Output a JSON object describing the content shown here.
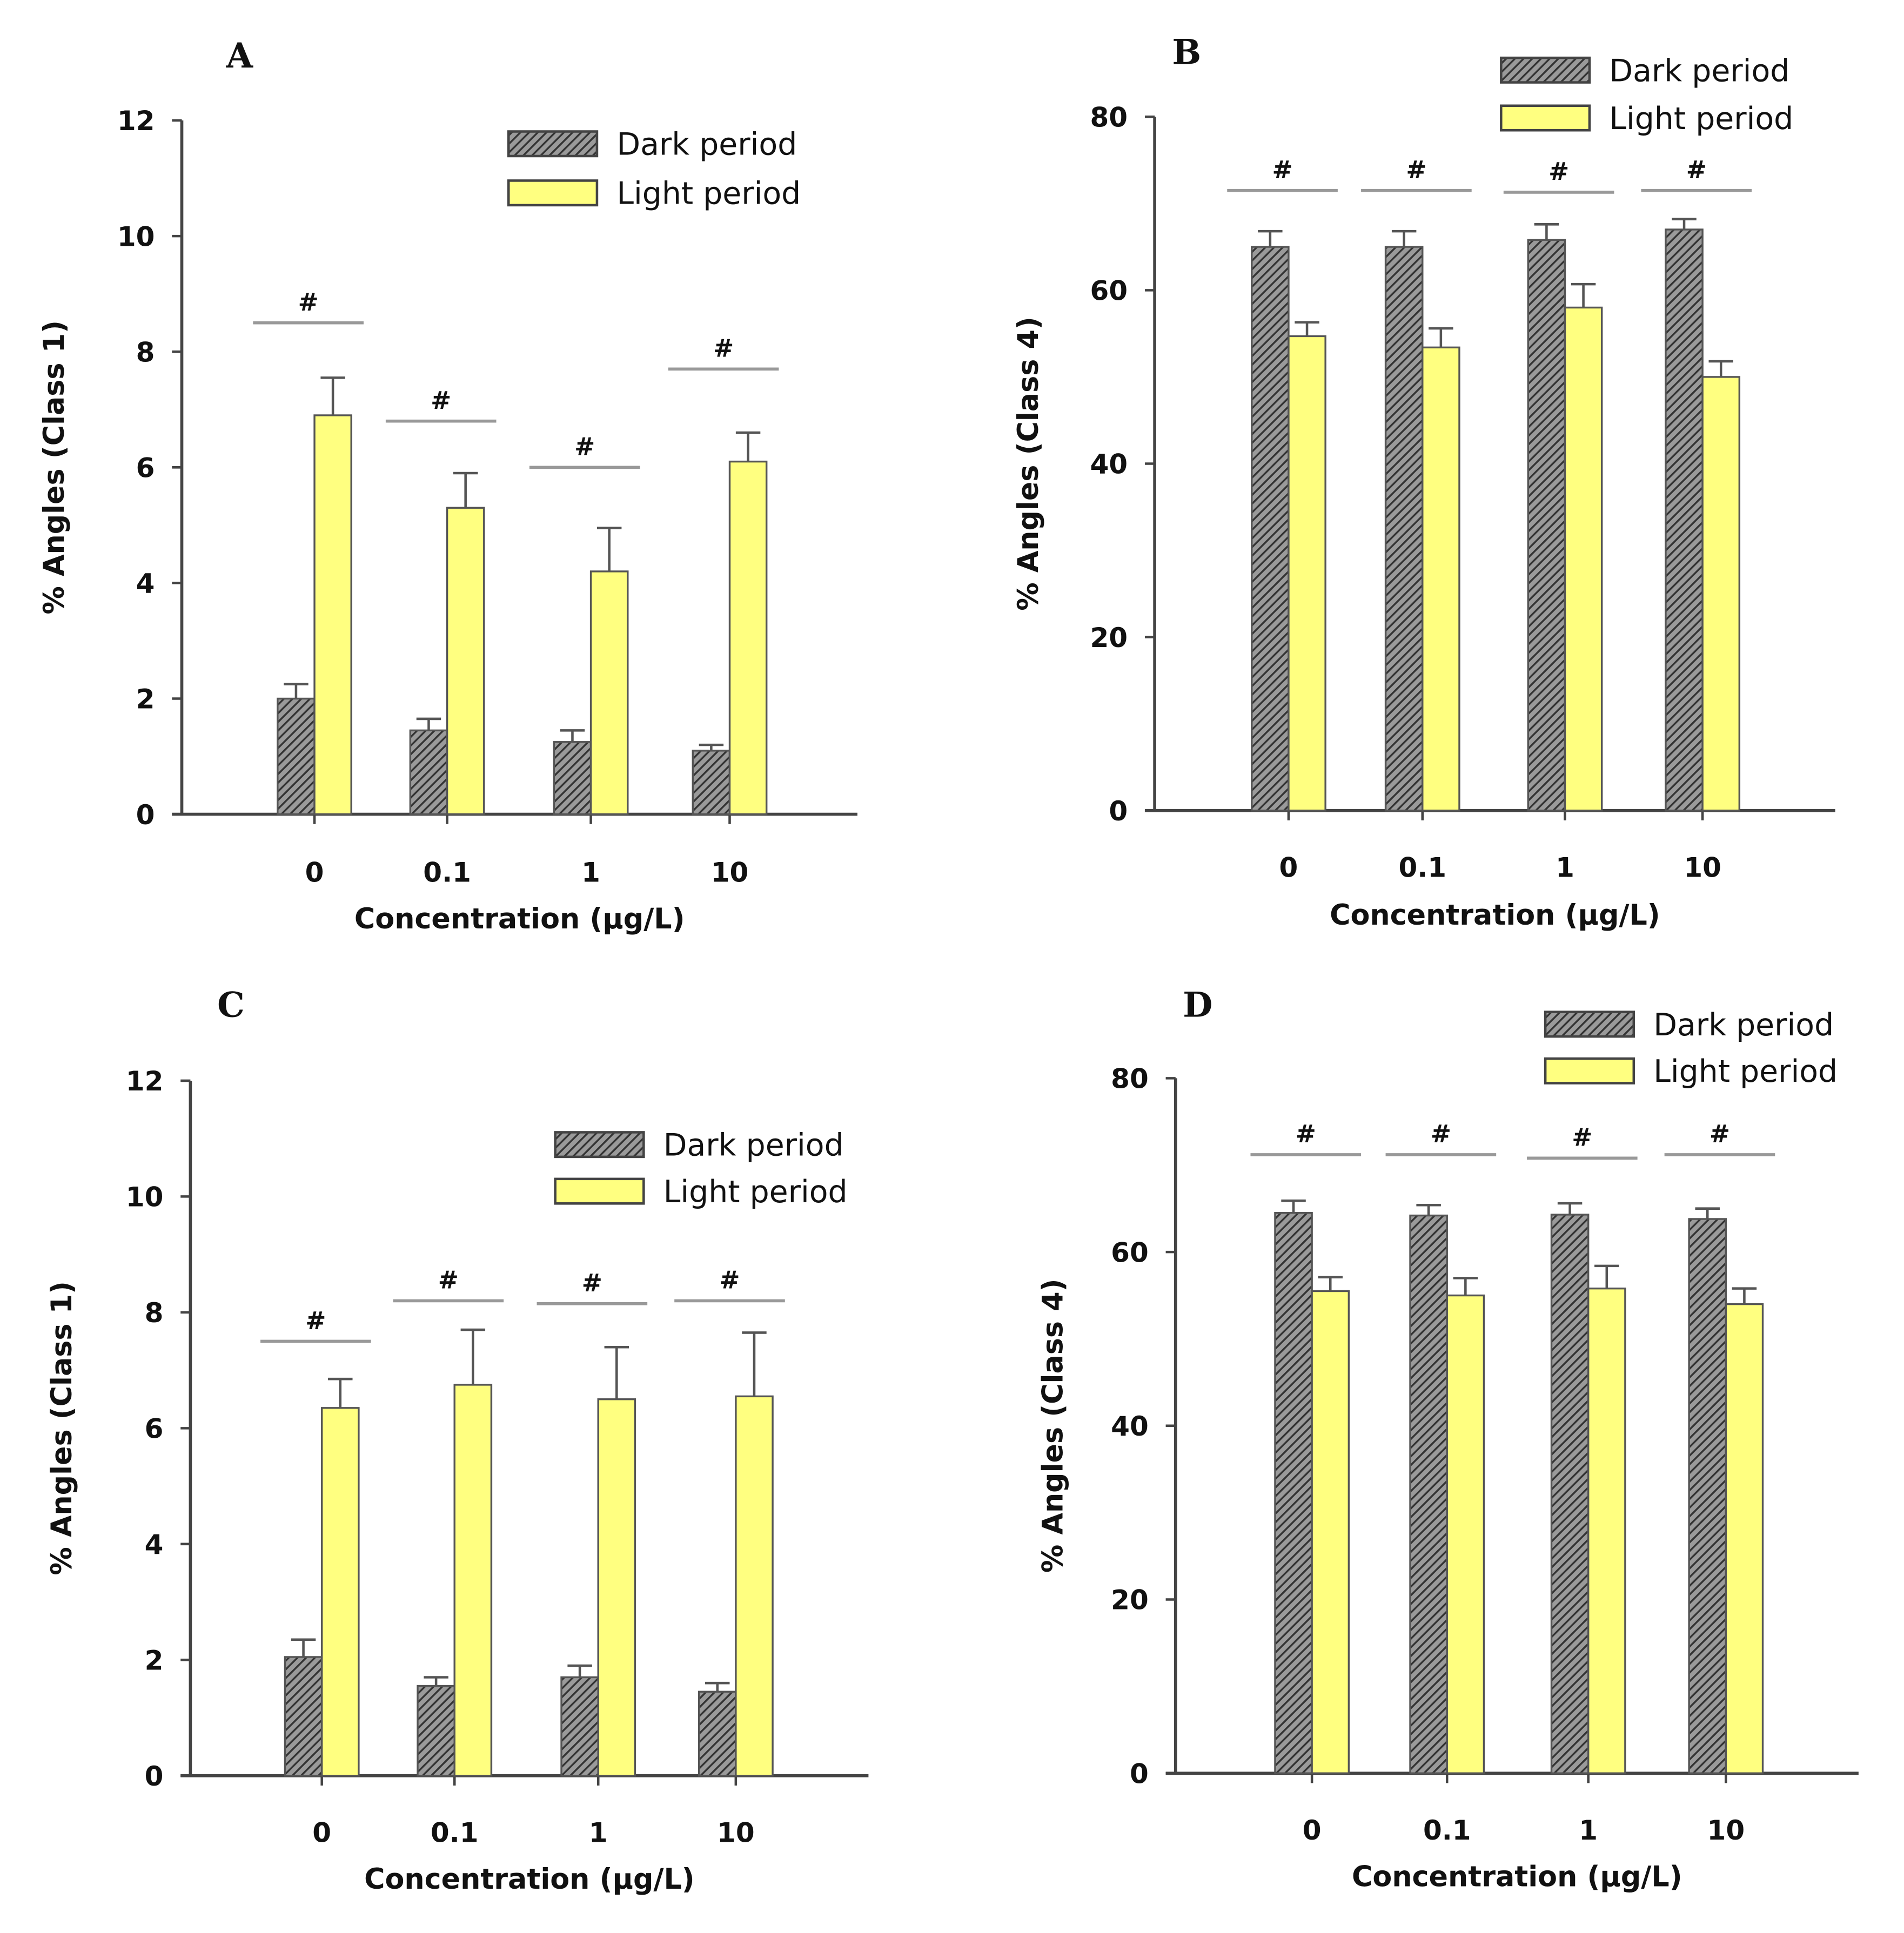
{
  "colors": {
    "dark": "#5a5a5a",
    "light": "#ffff80",
    "axis": "#444444",
    "sig": "#999999"
  },
  "chart_data": [
    {
      "type": "bar",
      "panel_label": "A",
      "categories": [
        "0",
        "0.1",
        "1",
        "10"
      ],
      "xlabel": "Concentration (µg/L)",
      "ylabel": "% Angles (Class 1)",
      "ylim": [
        0,
        12
      ],
      "yticks": [
        "0",
        "2",
        "4",
        "6",
        "8",
        "10",
        "12"
      ],
      "legend": "top-right",
      "significance_marker": "#",
      "series": [
        {
          "name": "Dark period",
          "values": [
            2.0,
            1.45,
            1.25,
            1.1
          ],
          "errors": [
            0.25,
            0.2,
            0.2,
            0.1
          ]
        },
        {
          "name": "Light period",
          "values": [
            6.9,
            5.3,
            4.2,
            6.1
          ],
          "errors": [
            0.65,
            0.6,
            0.75,
            0.5
          ]
        }
      ],
      "significance_levels": [
        8.5,
        6.8,
        6.0,
        7.7
      ]
    },
    {
      "type": "bar",
      "panel_label": "B",
      "categories": [
        "0",
        "0.1",
        "1",
        "10"
      ],
      "xlabel": "Concentration (µg/L)",
      "ylabel": "% Angles (Class 4)",
      "ylim": [
        0,
        80
      ],
      "yticks": [
        "0",
        "20",
        "40",
        "60",
        "80"
      ],
      "legend": "top-right",
      "significance_marker": "#",
      "series": [
        {
          "name": "Dark period",
          "values": [
            65,
            65,
            65.8,
            67
          ],
          "errors": [
            1.8,
            1.8,
            1.8,
            1.2
          ]
        },
        {
          "name": "Light period",
          "values": [
            54.7,
            53.4,
            58,
            50
          ],
          "errors": [
            1.6,
            2.2,
            2.7,
            1.8
          ]
        }
      ],
      "significance_levels": [
        71.5,
        71.5,
        71.3,
        71.5
      ]
    },
    {
      "type": "bar",
      "panel_label": "C",
      "categories": [
        "0",
        "0.1",
        "1",
        "10"
      ],
      "xlabel": "Concentration (µg/L)",
      "ylabel": "% Angles (Class 1)",
      "ylim": [
        0,
        12
      ],
      "yticks": [
        "0",
        "2",
        "4",
        "6",
        "8",
        "10",
        "12"
      ],
      "legend": "top-right",
      "significance_marker": "#",
      "series": [
        {
          "name": "Dark period",
          "values": [
            2.05,
            1.55,
            1.7,
            1.45
          ],
          "errors": [
            0.3,
            0.15,
            0.2,
            0.15
          ]
        },
        {
          "name": "Light period",
          "values": [
            6.35,
            6.75,
            6.5,
            6.55
          ],
          "errors": [
            0.5,
            0.95,
            0.9,
            1.1
          ]
        }
      ],
      "significance_levels": [
        7.5,
        8.2,
        8.15,
        8.2
      ]
    },
    {
      "type": "bar",
      "panel_label": "D",
      "categories": [
        "0",
        "0.1",
        "1",
        "10"
      ],
      "xlabel": "Concentration (µg/L)",
      "ylabel": "% Angles (Class 4)",
      "ylim": [
        0,
        80
      ],
      "yticks": [
        "0",
        "20",
        "40",
        "60",
        "80"
      ],
      "legend": "top-right",
      "significance_marker": "#",
      "series": [
        {
          "name": "Dark period",
          "values": [
            64.5,
            64.2,
            64.3,
            63.8
          ],
          "errors": [
            1.4,
            1.2,
            1.3,
            1.2
          ]
        },
        {
          "name": "Light period",
          "values": [
            55.5,
            55,
            55.8,
            54
          ],
          "errors": [
            1.6,
            2.0,
            2.6,
            1.8
          ]
        }
      ],
      "significance_levels": [
        71.2,
        71.2,
        70.8,
        71.2
      ]
    }
  ]
}
